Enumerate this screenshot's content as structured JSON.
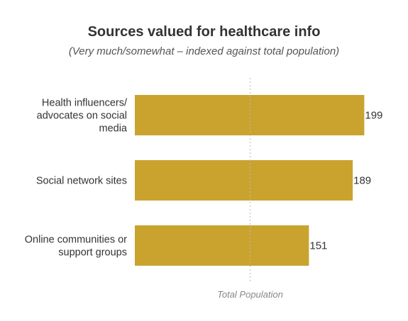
{
  "chart_data": {
    "type": "bar",
    "orientation": "horizontal",
    "title": "Sources valued for healthcare info",
    "subtitle": "(Very much/somewhat – indexed against total population)",
    "categories": [
      [
        "Health influencers/",
        "advocates on social",
        "media"
      ],
      [
        "Social network sites"
      ],
      [
        "Online communities or",
        "support groups"
      ]
    ],
    "values": [
      199,
      189,
      151
    ],
    "value_labels": [
      "199",
      "189",
      "151"
    ],
    "reference_line": {
      "value": 100,
      "label": "Total Population"
    },
    "bar_color": "#C9A32E",
    "reference_color": "#BBBBBB",
    "grid": false,
    "legend": "none"
  }
}
